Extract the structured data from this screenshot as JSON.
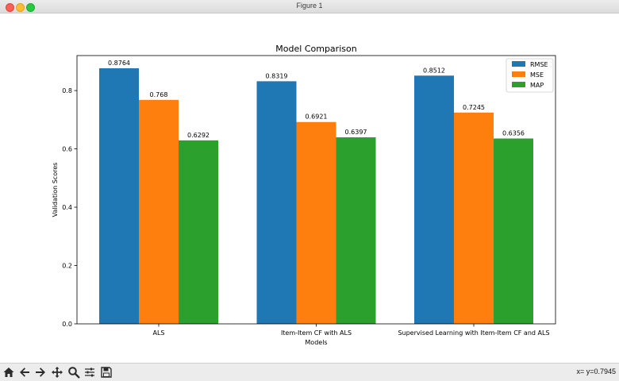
{
  "window": {
    "title": "Figure 1"
  },
  "toolbar": {
    "buttons": [
      {
        "name": "home-icon"
      },
      {
        "name": "back-arrow-icon"
      },
      {
        "name": "forward-arrow-icon"
      },
      {
        "name": "pan-icon"
      },
      {
        "name": "zoom-icon"
      },
      {
        "name": "configure-subplots-icon"
      },
      {
        "name": "save-icon"
      }
    ],
    "coords": "x= y=0.7945"
  },
  "chart_data": {
    "type": "bar",
    "title": "Model Comparison",
    "xlabel": "Models",
    "ylabel": "Validation Scores",
    "categories": [
      "ALS",
      "Item-Item CF with ALS",
      "Supervised Learning with Item-Item CF and ALS"
    ],
    "series": [
      {
        "name": "RMSE",
        "color": "#1f77b4",
        "values": [
          0.8764,
          0.8319,
          0.8512
        ],
        "labels": [
          "0.8764",
          "0.8319",
          "0.8512"
        ]
      },
      {
        "name": "MSE",
        "color": "#ff7f0e",
        "values": [
          0.768,
          0.6921,
          0.7245
        ],
        "labels": [
          "0.768",
          "0.6921",
          "0.7245"
        ]
      },
      {
        "name": "MAP",
        "color": "#2ca02c",
        "values": [
          0.6292,
          0.6397,
          0.6356
        ],
        "labels": [
          "0.6292",
          "0.6397",
          "0.6356"
        ]
      }
    ],
    "ylim": [
      0,
      0.92
    ],
    "yticks": [
      "0.0",
      "0.2",
      "0.4",
      "0.6",
      "0.8"
    ],
    "legend": "top-right",
    "grid": false
  }
}
